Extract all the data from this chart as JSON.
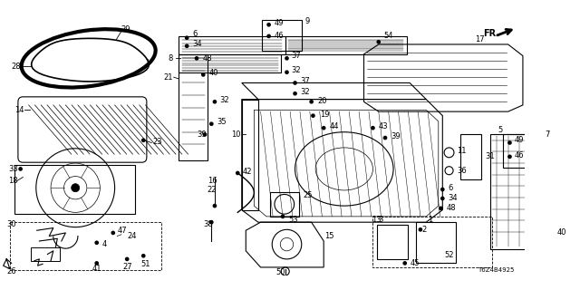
{
  "bg_color": "#ffffff",
  "line_color": "#000000",
  "fig_width": 6.4,
  "fig_height": 3.2,
  "dpi": 100,
  "watermark": "T6Z4B4925",
  "fr_text": "FR.",
  "gray": "#555555",
  "lgray": "#aaaaaa"
}
